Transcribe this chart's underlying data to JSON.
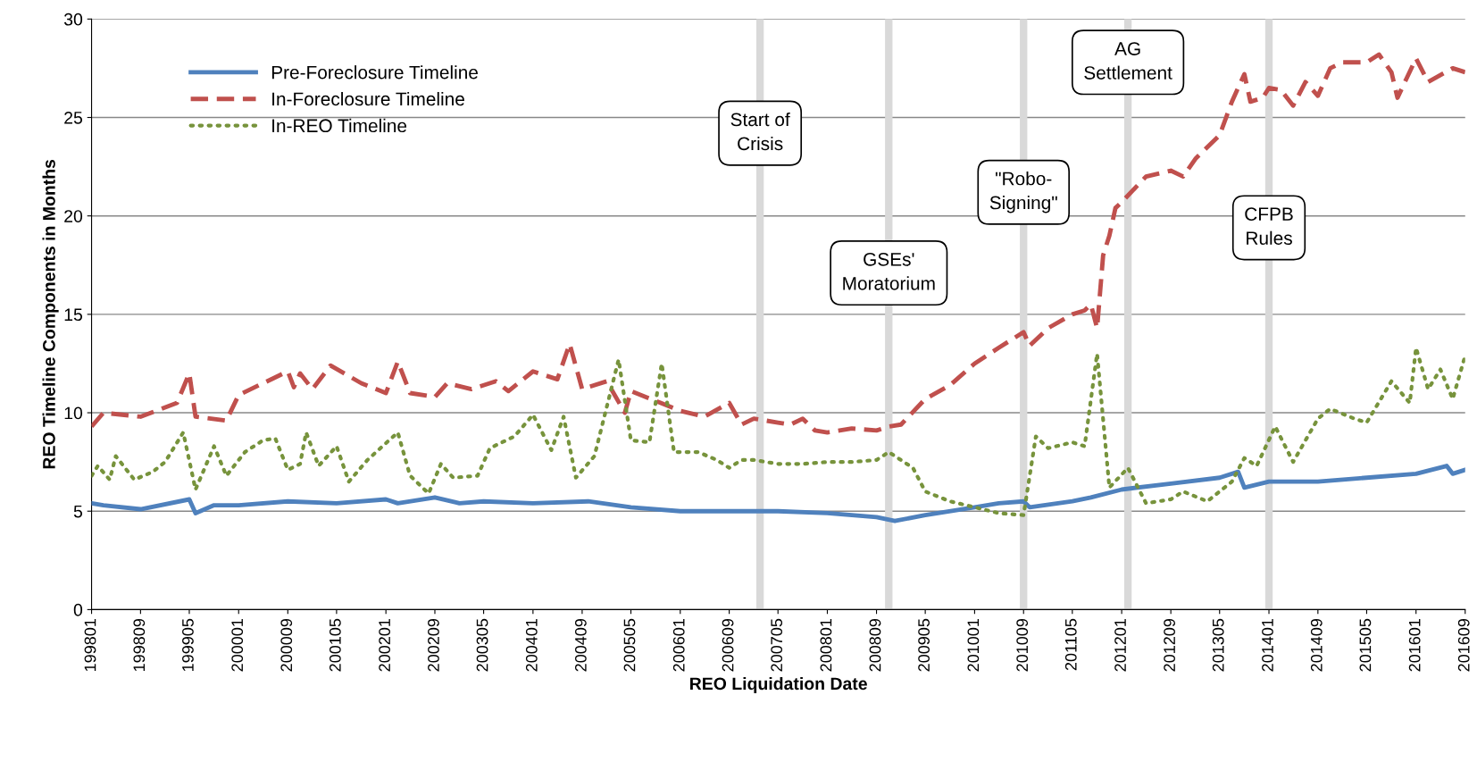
{
  "chart_data": {
    "type": "line",
    "xlabel": "REO Liquidation Date",
    "ylabel": "REO Timeline Components in Months",
    "xlim": [
      "1998-01",
      "2016-09"
    ],
    "ylim": [
      0,
      30
    ],
    "yticks": [
      0,
      5,
      10,
      15,
      20,
      25,
      30
    ],
    "grid": "y",
    "legend": "top left",
    "xticks": [
      {
        "value": "1998-01",
        "label": "199801"
      },
      {
        "value": "1998-09",
        "label": "199809"
      },
      {
        "value": "1999-05",
        "label": "199905"
      },
      {
        "value": "2000-01",
        "label": "200001"
      },
      {
        "value": "2000-09",
        "label": "200009"
      },
      {
        "value": "2001-05",
        "label": "200105"
      },
      {
        "value": "2002-01",
        "label": "200201"
      },
      {
        "value": "2002-09",
        "label": "200209"
      },
      {
        "value": "2003-05",
        "label": "200305"
      },
      {
        "value": "2004-01",
        "label": "200401"
      },
      {
        "value": "2004-09",
        "label": "200409"
      },
      {
        "value": "2005-05",
        "label": "200505"
      },
      {
        "value": "2006-01",
        "label": "200601"
      },
      {
        "value": "2006-09",
        "label": "200609"
      },
      {
        "value": "2007-05",
        "label": "200705"
      },
      {
        "value": "2008-01",
        "label": "200801"
      },
      {
        "value": "2008-09",
        "label": "200809"
      },
      {
        "value": "2009-05",
        "label": "200905"
      },
      {
        "value": "2010-01",
        "label": "201001"
      },
      {
        "value": "2010-09",
        "label": "201009"
      },
      {
        "value": "2011-05",
        "label": "201105"
      },
      {
        "value": "2012-01",
        "label": "201201"
      },
      {
        "value": "2012-09",
        "label": "201209"
      },
      {
        "value": "2013-05",
        "label": "201305"
      },
      {
        "value": "2014-01",
        "label": "201401"
      },
      {
        "value": "2014-09",
        "label": "201409"
      },
      {
        "value": "2015-05",
        "label": "201505"
      },
      {
        "value": "2016-01",
        "label": "201601"
      },
      {
        "value": "2016-09",
        "label": "201609"
      }
    ],
    "ref_lines": [
      {
        "axis": "x",
        "value": "2007-02",
        "label": "Start of\nCrisis",
        "color": "#d9d9d9"
      },
      {
        "axis": "x",
        "value": "2008-11",
        "label": "GSEs'\nMoratorium",
        "color": "#d9d9d9"
      },
      {
        "axis": "x",
        "value": "2010-09",
        "label": "\"Robo-\nSigning\"",
        "color": "#d9d9d9"
      },
      {
        "axis": "x",
        "value": "2012-02",
        "label": "AG\nSettlement",
        "color": "#d9d9d9"
      },
      {
        "axis": "x",
        "value": "2014-01",
        "label": "CFPB\nRules",
        "color": "#d9d9d9"
      }
    ],
    "series": [
      {
        "name": "Pre-Foreclosure Timeline",
        "color": "#4f81bd",
        "line_style": "solid",
        "x": [
          "1998-01",
          "1998-03",
          "1998-09",
          "1999-05",
          "1999-06",
          "1999-09",
          "2000-01",
          "2000-09",
          "2001-05",
          "2002-01",
          "2002-03",
          "2002-09",
          "2003-01",
          "2003-05",
          "2004-01",
          "2004-10",
          "2005-05",
          "2006-01",
          "2006-09",
          "2007-05",
          "2008-01",
          "2008-09",
          "2008-12",
          "2009-05",
          "2010-01",
          "2010-05",
          "2010-09",
          "2010-10",
          "2011-05",
          "2011-08",
          "2012-01",
          "2012-09",
          "2013-05",
          "2013-08",
          "2013-09",
          "2014-01",
          "2014-09",
          "2015-05",
          "2016-01",
          "2016-06",
          "2016-07",
          "2016-09"
        ],
        "values": [
          5.4,
          5.3,
          5.1,
          5.6,
          4.9,
          5.3,
          5.3,
          5.5,
          5.4,
          5.6,
          5.4,
          5.7,
          5.4,
          5.5,
          5.4,
          5.5,
          5.2,
          5.0,
          5.0,
          5.0,
          4.9,
          4.7,
          4.5,
          4.8,
          5.2,
          5.4,
          5.5,
          5.2,
          5.5,
          5.7,
          6.1,
          6.4,
          6.7,
          7.0,
          6.2,
          6.5,
          6.5,
          6.7,
          6.9,
          7.3,
          6.9,
          7.1
        ]
      },
      {
        "name": "In-Foreclosure Timeline",
        "color": "#c0504d",
        "line_style": "dashed",
        "x": [
          "1998-01",
          "1998-03",
          "1998-09",
          "1999-03",
          "1999-05",
          "1999-06",
          "1999-11",
          "2000-01",
          "2000-05",
          "2000-09",
          "2000-10",
          "2000-11",
          "2001-01",
          "2001-04",
          "2001-09",
          "2002-01",
          "2002-03",
          "2002-05",
          "2002-09",
          "2002-11",
          "2003-03",
          "2003-07",
          "2003-09",
          "2004-01",
          "2004-05",
          "2004-07",
          "2004-09",
          "2005-01",
          "2005-04",
          "2005-05",
          "2005-09",
          "2006-01",
          "2006-05",
          "2006-09",
          "2006-11",
          "2007-01",
          "2007-05",
          "2007-07",
          "2007-09",
          "2007-11",
          "2008-01",
          "2008-05",
          "2008-09",
          "2008-11",
          "2009-01",
          "2009-05",
          "2009-09",
          "2010-01",
          "2010-05",
          "2010-09",
          "2010-10",
          "2011-01",
          "2011-05",
          "2011-07",
          "2011-08",
          "2011-09",
          "2011-10",
          "2011-11",
          "2011-12",
          "2012-01",
          "2012-05",
          "2012-09",
          "2012-11",
          "2013-01",
          "2013-05",
          "2013-07",
          "2013-09",
          "2013-10",
          "2013-12",
          "2014-01",
          "2014-03",
          "2014-05",
          "2014-07",
          "2014-09",
          "2014-11",
          "2015-01",
          "2015-05",
          "2015-07",
          "2015-09",
          "2015-10",
          "2016-01",
          "2016-03",
          "2016-07",
          "2016-09"
        ],
        "values": [
          9.3,
          10.0,
          9.8,
          10.5,
          12.0,
          9.8,
          9.6,
          10.9,
          11.5,
          12.1,
          11.3,
          12.0,
          11.2,
          12.4,
          11.5,
          11.0,
          12.6,
          11.0,
          10.8,
          11.5,
          11.2,
          11.6,
          11.1,
          12.1,
          11.7,
          13.5,
          11.2,
          11.6,
          10.0,
          11.1,
          10.6,
          10.1,
          9.8,
          10.5,
          9.4,
          9.7,
          9.5,
          9.4,
          9.7,
          9.1,
          9.0,
          9.2,
          9.1,
          9.3,
          9.4,
          10.7,
          11.4,
          12.5,
          13.3,
          14.1,
          13.4,
          14.3,
          15.0,
          15.2,
          15.5,
          14.3,
          18.0,
          19.0,
          20.4,
          20.7,
          22.0,
          22.3,
          22.0,
          22.9,
          24.1,
          25.8,
          27.2,
          25.8,
          26.0,
          26.5,
          26.4,
          25.6,
          26.8,
          26.1,
          27.5,
          27.8,
          27.8,
          28.2,
          27.3,
          26.0,
          28.0,
          26.8,
          27.5,
          27.3
        ]
      },
      {
        "name": "In-REO Timeline",
        "color": "#77933c",
        "line_style": "dotted",
        "x": [
          "1998-01",
          "1998-02",
          "1998-04",
          "1998-05",
          "1998-08",
          "1998-11",
          "1999-01",
          "1999-04",
          "1999-06",
          "1999-09",
          "1999-11",
          "2000-02",
          "2000-05",
          "2000-07",
          "2000-09",
          "2000-11",
          "2000-12",
          "2001-02",
          "2001-05",
          "2001-07",
          "2001-10",
          "2002-03",
          "2002-05",
          "2002-08",
          "2002-10",
          "2002-12",
          "2003-04",
          "2003-06",
          "2003-10",
          "2004-01",
          "2004-04",
          "2004-06",
          "2004-08",
          "2004-11",
          "2005-03",
          "2005-05",
          "2005-08",
          "2005-10",
          "2005-12",
          "2006-04",
          "2006-07",
          "2006-09",
          "2006-11",
          "2007-01",
          "2007-05",
          "2007-09",
          "2008-01",
          "2008-05",
          "2008-09",
          "2008-11",
          "2009-03",
          "2009-05",
          "2009-09",
          "2010-01",
          "2010-05",
          "2010-09",
          "2010-11",
          "2011-01",
          "2011-05",
          "2011-07",
          "2011-09",
          "2011-11",
          "2012-02",
          "2012-05",
          "2012-09",
          "2012-11",
          "2013-03",
          "2013-05",
          "2013-07",
          "2013-09",
          "2013-11",
          "2014-02",
          "2014-05",
          "2014-09",
          "2014-11",
          "2015-03",
          "2015-05",
          "2015-09",
          "2015-12",
          "2016-01",
          "2016-03",
          "2016-05",
          "2016-07",
          "2016-09"
        ],
        "values": [
          6.8,
          7.3,
          6.6,
          7.8,
          6.6,
          7.0,
          7.5,
          9.0,
          6.1,
          8.3,
          6.8,
          8.0,
          8.6,
          8.7,
          7.1,
          7.4,
          9.0,
          7.3,
          8.3,
          6.5,
          7.6,
          9.0,
          6.8,
          5.9,
          7.4,
          6.7,
          6.8,
          8.2,
          8.8,
          9.9,
          8.1,
          9.8,
          6.7,
          7.8,
          12.7,
          8.6,
          8.5,
          12.5,
          8.0,
          8.0,
          7.6,
          7.2,
          7.6,
          7.6,
          7.4,
          7.4,
          7.5,
          7.5,
          7.6,
          8.0,
          7.2,
          6.0,
          5.5,
          5.2,
          4.9,
          4.8,
          8.8,
          8.2,
          8.5,
          8.3,
          13.0,
          6.2,
          7.2,
          5.4,
          5.6,
          6.0,
          5.5,
          6.0,
          6.5,
          7.7,
          7.3,
          9.3,
          7.5,
          9.7,
          10.2,
          9.7,
          9.5,
          11.6,
          10.5,
          13.3,
          11.2,
          12.2,
          10.7,
          12.9
        ]
      }
    ]
  }
}
